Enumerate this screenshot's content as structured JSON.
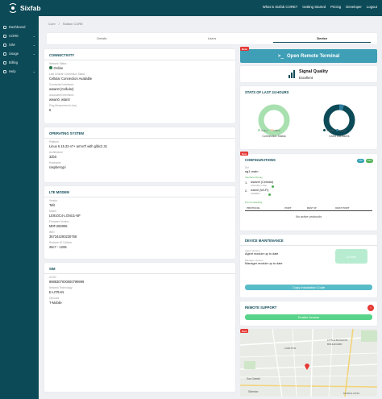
{
  "brand": {
    "name": "Sixfab"
  },
  "topnav": [
    "What is Sixfab CORE?",
    "Getting Started",
    "Pricing",
    "Developer",
    "Logout"
  ],
  "sidebar": [
    {
      "label": "Dashboard",
      "icon": "dashboard-icon",
      "caret": ""
    },
    {
      "label": "CORE",
      "icon": "core-icon",
      "caret": "⌄"
    },
    {
      "label": "SIM",
      "icon": "sim-icon",
      "caret": "⌄"
    },
    {
      "label": "Usage",
      "icon": "usage-icon",
      "caret": "⌄"
    },
    {
      "label": "Billing",
      "icon": "billing-icon",
      "caret": ""
    },
    {
      "label": "Help",
      "icon": "help-icon",
      "caret": "⌄"
    }
  ],
  "breadcrumb": {
    "first": "Core",
    "separator": "/",
    "second": "Station CORE"
  },
  "tabs": [
    {
      "label": "Details",
      "active": false
    },
    {
      "label": "Users",
      "active": false
    },
    {
      "label": "Device",
      "active": true
    }
  ],
  "connectivity": {
    "title": "CONNECTIVITY",
    "rows": [
      {
        "label": "Network Status",
        "value": "Online",
        "dot": true
      },
      {
        "label": "Last Cellular Connection Status",
        "value": "Cellular Connection Available"
      },
      {
        "label": "Connected Interfaces",
        "value": "wwan0 (Cellular)"
      },
      {
        "label": "Associated Interfaces",
        "value": "wwan0, wlan0"
      },
      {
        "label": "Ping Measurement (ms)",
        "value": "5"
      }
    ]
  },
  "os": {
    "title": "OPERATING SYSTEM",
    "rows": [
      {
        "label": "Platform",
        "value": "Linux 6.15.32-v7+ armv7l with glibc2.31"
      },
      {
        "label": "Architecture",
        "value": "32bit"
      },
      {
        "label": "Hostname",
        "value": "raspberrypi"
      }
    ]
  },
  "lte": {
    "title": "LTE MODEM",
    "rows": [
      {
        "label": "Vendor",
        "value": "Telit"
      },
      {
        "label": "Model",
        "value": "LE910C4-LGNU1-NF"
      },
      {
        "label": "Firmware Version",
        "value": "M0F.260006"
      },
      {
        "label": "IMEI",
        "value": "357344290230768"
      },
      {
        "label": "Revision ID Cellular",
        "value": "25c7 - 1206"
      }
    ]
  },
  "sim": {
    "title": "SIM",
    "rows": [
      {
        "label": "ICCID",
        "value": "8988307000000799999"
      },
      {
        "label": "Network Technology",
        "value": "E-UTRAN"
      },
      {
        "label": "Operator",
        "value": "T-Mobile"
      }
    ]
  },
  "terminal": {
    "label": "Open Remote Terminal",
    "badge": "Beta",
    "icon": "terminal-icon"
  },
  "signal": {
    "title": "Signal Quality",
    "value": "Excellent",
    "icon": "signal-bars-icon"
  },
  "stats": {
    "title": "STATS OF LAST 24 HOURS",
    "charts": [
      {
        "caption": "Connection Status",
        "legend": [
          "Online",
          "Offline"
        ],
        "colors": [
          "#a8e0b0",
          "#f7c9a3"
        ],
        "values": [
          100,
          0
        ]
      },
      {
        "caption": "Used Interfaces",
        "legend": [
          "wwan0",
          "wlan0"
        ],
        "colors": [
          "#0d4a57",
          "#2f7fa0"
        ],
        "values": [
          95,
          5
        ]
      }
    ]
  },
  "configurations": {
    "title": "CONFIGURATIONS",
    "badge": "Beta",
    "toggles": [
      "ON",
      "OFF"
    ],
    "colors": {
      "green": "#4caf50",
      "teal": "#2f9fb0"
    },
    "kv_label": "Sol",
    "kv_value": "sg1-main",
    "interface_priority_label": "Interface Priority",
    "interfaces": [
      {
        "index": "1.",
        "name": "wwan0 (Cellular)",
        "status": "Currently in Use"
      },
      {
        "index": "2.",
        "name": "wlan0 (Wi-Fi)",
        "status": "Available"
      }
    ],
    "port_forwarding_label": "Port Forwarding",
    "port_columns": [
      "PROTOCOL",
      "PORT",
      "DEST IP",
      "DEST PORT"
    ],
    "empty_text": "No active protocols"
  },
  "maintenance": {
    "title": "DEVICE MAINTENANCE",
    "rows": [
      {
        "label": "Agent Version",
        "value": "Agent module up to date"
      },
      {
        "label": "Manager Version",
        "value": "Manager module up to date"
      }
    ],
    "update_button": "Update",
    "install_button": "Copy Installation Code"
  },
  "remote_support": {
    "title": "REMOTE SUPPORT",
    "badge": "!",
    "button": "Enable Access"
  },
  "map": {
    "badge": "Beta",
    "labels": [
      "CARLTON",
      "LITTLE BANGKOK",
      "BOULEVARD",
      "San Gabriel",
      "Silverton",
      "MONTE VISTA"
    ]
  }
}
